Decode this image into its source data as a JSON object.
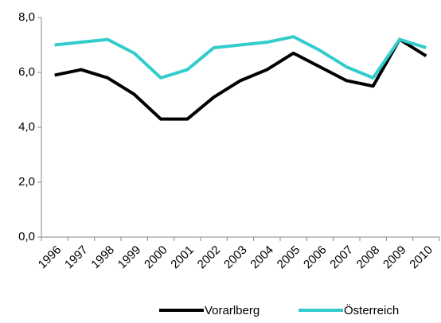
{
  "chart_data": {
    "type": "line",
    "categories": [
      "1996",
      "1997",
      "1998",
      "1999",
      "2000",
      "2001",
      "2002",
      "2003",
      "2004",
      "2005",
      "2006",
      "2007",
      "2008",
      "2009",
      "2010"
    ],
    "series": [
      {
        "name": "Vorarlberg",
        "color": "#000000",
        "values": [
          5.9,
          6.1,
          5.8,
          5.2,
          4.3,
          4.3,
          5.1,
          5.7,
          6.1,
          6.7,
          6.2,
          5.7,
          5.5,
          7.2,
          6.6
        ]
      },
      {
        "name": "Österreich",
        "color": "#33cccc",
        "values": [
          7.0,
          7.1,
          7.2,
          6.7,
          5.8,
          6.1,
          6.9,
          7.0,
          7.1,
          7.3,
          6.8,
          6.2,
          5.8,
          7.2,
          6.9
        ]
      }
    ],
    "ylim": [
      0,
      8
    ],
    "yticks": [
      {
        "value": 0,
        "label": "0,0"
      },
      {
        "value": 2,
        "label": "2,0"
      },
      {
        "value": 4,
        "label": "4,0"
      },
      {
        "value": 6,
        "label": "6,0"
      },
      {
        "value": 8,
        "label": "8,0"
      }
    ],
    "grid": false,
    "legend": "bottom"
  }
}
